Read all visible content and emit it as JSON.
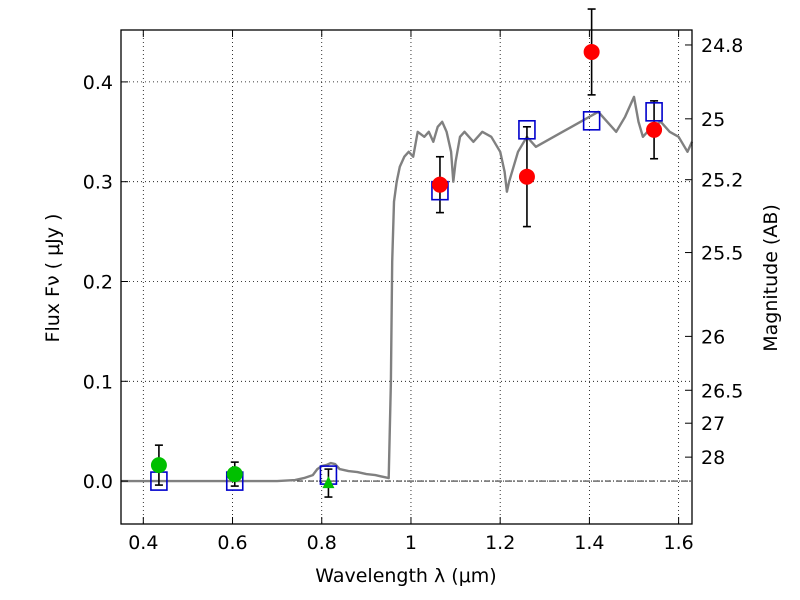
{
  "chart_data": {
    "type": "scatter",
    "xlabel": "Wavelength  λ (μm)",
    "ylabel": "Flux  Fν  ( μJy )",
    "ylabel_right": "Magnitude (AB)",
    "xlim": [
      0.35,
      1.63
    ],
    "ylim": [
      -0.043,
      0.452
    ],
    "grid": true,
    "x_ticks": [
      0.4,
      0.6,
      0.8,
      1.0,
      1.2,
      1.4,
      1.6
    ],
    "x_tick_labels": [
      "0.4",
      "0.6",
      "0.8",
      "1",
      "1.2",
      "1.4",
      "1.6"
    ],
    "y_ticks": [
      0.0,
      0.1,
      0.2,
      0.3,
      0.4
    ],
    "y_tick_labels": [
      "0.0",
      "0.1",
      "0.2",
      "0.3",
      "0.4"
    ],
    "right_ticks": [
      {
        "label": "24.8",
        "flux": 0.437
      },
      {
        "label": "25",
        "flux": 0.363
      },
      {
        "label": "25.2",
        "flux": 0.302
      },
      {
        "label": "25.5",
        "flux": 0.229
      },
      {
        "label": "26",
        "flux": 0.145
      },
      {
        "label": "26.5",
        "flux": 0.091
      },
      {
        "label": "27",
        "flux": 0.058
      },
      {
        "label": "28",
        "flux": 0.024
      }
    ],
    "colors": {
      "model": "#808080",
      "red_points": "#ff0000",
      "green_points": "#00c000",
      "model_boxes": "#0000cc",
      "error_bars": "#000000",
      "zero_line": "#000000"
    },
    "series": [
      {
        "role": "model",
        "style": "line",
        "points": [
          [
            0.35,
            0.0
          ],
          [
            0.5,
            0.0
          ],
          [
            0.7,
            0.0
          ],
          [
            0.74,
            0.001
          ],
          [
            0.76,
            0.003
          ],
          [
            0.78,
            0.006
          ],
          [
            0.79,
            0.012
          ],
          [
            0.8,
            0.015
          ],
          [
            0.81,
            0.016
          ],
          [
            0.82,
            0.018
          ],
          [
            0.83,
            0.017
          ],
          [
            0.84,
            0.012
          ],
          [
            0.86,
            0.01
          ],
          [
            0.88,
            0.009
          ],
          [
            0.9,
            0.007
          ],
          [
            0.92,
            0.006
          ],
          [
            0.94,
            0.004
          ],
          [
            0.95,
            0.003
          ],
          [
            0.955,
            0.1
          ],
          [
            0.958,
            0.22
          ],
          [
            0.962,
            0.28
          ],
          [
            0.968,
            0.3
          ],
          [
            0.975,
            0.315
          ],
          [
            0.985,
            0.325
          ],
          [
            0.995,
            0.33
          ],
          [
            1.005,
            0.325
          ],
          [
            1.015,
            0.35
          ],
          [
            1.03,
            0.345
          ],
          [
            1.04,
            0.35
          ],
          [
            1.05,
            0.34
          ],
          [
            1.06,
            0.355
          ],
          [
            1.07,
            0.36
          ],
          [
            1.08,
            0.35
          ],
          [
            1.09,
            0.33
          ],
          [
            1.095,
            0.3
          ],
          [
            1.1,
            0.32
          ],
          [
            1.11,
            0.345
          ],
          [
            1.12,
            0.35
          ],
          [
            1.14,
            0.34
          ],
          [
            1.16,
            0.35
          ],
          [
            1.18,
            0.345
          ],
          [
            1.2,
            0.33
          ],
          [
            1.21,
            0.31
          ],
          [
            1.215,
            0.29
          ],
          [
            1.22,
            0.3
          ],
          [
            1.24,
            0.33
          ],
          [
            1.26,
            0.345
          ],
          [
            1.28,
            0.335
          ],
          [
            1.3,
            0.34
          ],
          [
            1.32,
            0.345
          ],
          [
            1.34,
            0.35
          ],
          [
            1.36,
            0.355
          ],
          [
            1.38,
            0.36
          ],
          [
            1.4,
            0.365
          ],
          [
            1.42,
            0.37
          ],
          [
            1.44,
            0.36
          ],
          [
            1.46,
            0.35
          ],
          [
            1.48,
            0.365
          ],
          [
            1.5,
            0.385
          ],
          [
            1.51,
            0.36
          ],
          [
            1.52,
            0.345
          ],
          [
            1.54,
            0.355
          ],
          [
            1.56,
            0.36
          ],
          [
            1.58,
            0.35
          ],
          [
            1.6,
            0.345
          ],
          [
            1.62,
            0.33
          ],
          [
            1.63,
            0.34
          ]
        ]
      },
      {
        "role": "observed-detected",
        "style": "circle",
        "points": [
          {
            "x": 1.065,
            "y": 0.297,
            "err": 0.028
          },
          {
            "x": 1.26,
            "y": 0.305,
            "err": 0.05
          },
          {
            "x": 1.405,
            "y": 0.43,
            "err": 0.043
          },
          {
            "x": 1.545,
            "y": 0.352,
            "err": 0.029
          }
        ]
      },
      {
        "role": "observed-upper",
        "style": "circle",
        "points": [
          {
            "x": 0.435,
            "y": 0.016,
            "err": 0.02
          },
          {
            "x": 0.605,
            "y": 0.007,
            "err": 0.012
          }
        ]
      },
      {
        "role": "observed-triangle",
        "style": "triangle",
        "points": [
          {
            "x": 0.815,
            "y": -0.002,
            "err": 0.014
          }
        ]
      },
      {
        "role": "model-photometry",
        "style": "square",
        "points": [
          {
            "x": 0.435,
            "y": 0.0
          },
          {
            "x": 0.605,
            "y": 0.0
          },
          {
            "x": 0.815,
            "y": 0.006
          },
          {
            "x": 1.065,
            "y": 0.291
          },
          {
            "x": 1.26,
            "y": 0.352
          },
          {
            "x": 1.405,
            "y": 0.361
          },
          {
            "x": 1.545,
            "y": 0.37
          }
        ]
      }
    ]
  }
}
